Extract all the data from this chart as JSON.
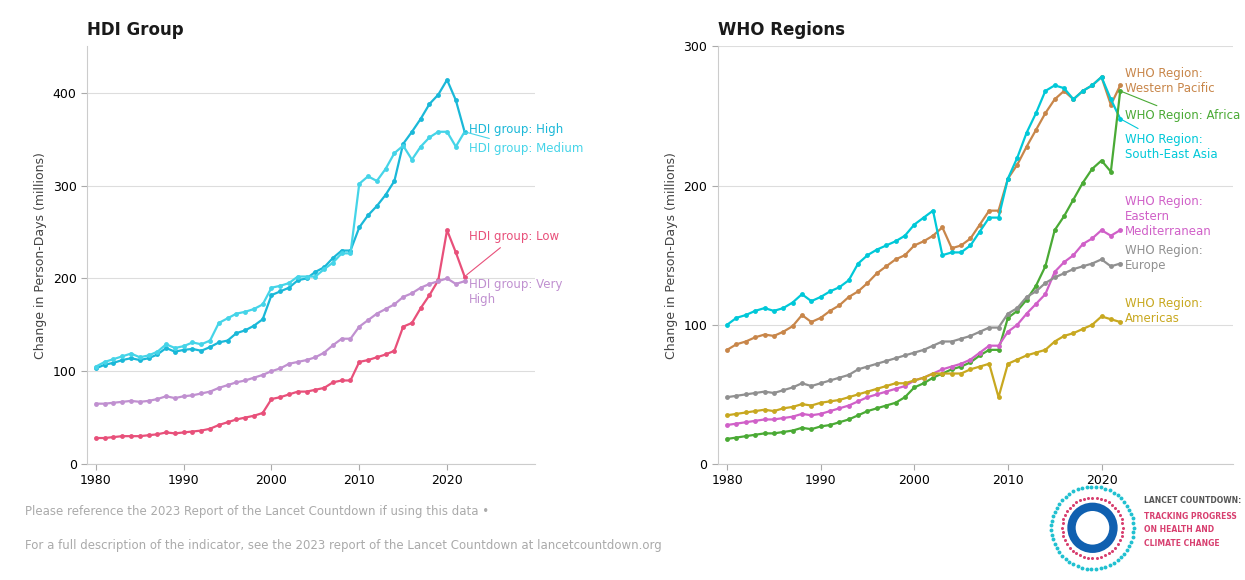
{
  "years": [
    1980,
    1981,
    1982,
    1983,
    1984,
    1985,
    1986,
    1987,
    1988,
    1989,
    1990,
    1991,
    1992,
    1993,
    1994,
    1995,
    1996,
    1997,
    1998,
    1999,
    2000,
    2001,
    2002,
    2003,
    2004,
    2005,
    2006,
    2007,
    2008,
    2009,
    2010,
    2011,
    2012,
    2013,
    2014,
    2015,
    2016,
    2017,
    2018,
    2019,
    2020,
    2021,
    2022
  ],
  "hdi_high": [
    103,
    107,
    109,
    112,
    114,
    112,
    114,
    118,
    125,
    121,
    123,
    124,
    122,
    126,
    131,
    133,
    141,
    144,
    149,
    156,
    182,
    186,
    190,
    198,
    200,
    207,
    212,
    222,
    230,
    230,
    255,
    268,
    278,
    290,
    305,
    345,
    358,
    372,
    388,
    398,
    414,
    392,
    358
  ],
  "hdi_medium": [
    105,
    110,
    113,
    116,
    119,
    115,
    117,
    121,
    129,
    125,
    127,
    131,
    129,
    133,
    152,
    157,
    162,
    164,
    167,
    172,
    190,
    192,
    195,
    202,
    202,
    202,
    210,
    217,
    227,
    227,
    302,
    310,
    305,
    318,
    335,
    343,
    328,
    342,
    352,
    358,
    358,
    342,
    358
  ],
  "hdi_low": [
    28,
    28,
    29,
    30,
    30,
    30,
    31,
    32,
    34,
    33,
    34,
    35,
    36,
    38,
    42,
    45,
    48,
    50,
    52,
    55,
    70,
    72,
    75,
    78,
    78,
    80,
    82,
    88,
    90,
    90,
    110,
    112,
    115,
    118,
    122,
    148,
    152,
    168,
    182,
    198,
    252,
    228,
    202
  ],
  "hdi_very_high": [
    65,
    65,
    66,
    67,
    68,
    67,
    68,
    70,
    73,
    71,
    73,
    74,
    76,
    78,
    82,
    85,
    88,
    90,
    93,
    96,
    100,
    103,
    108,
    110,
    112,
    115,
    120,
    128,
    135,
    135,
    148,
    155,
    162,
    167,
    172,
    180,
    184,
    190,
    194,
    197,
    200,
    194,
    197
  ],
  "hdi_colors": {
    "high": "#1ab8d8",
    "medium": "#45d4e8",
    "low": "#e8507a",
    "very_high": "#c090d0"
  },
  "hdi_labels": {
    "high": "HDI group: High",
    "medium": "HDI group: Medium",
    "low": "HDI group: Low",
    "very_high": "HDI group: Very\nHigh"
  },
  "who_western_pacific": [
    82,
    86,
    88,
    91,
    93,
    92,
    95,
    99,
    107,
    102,
    105,
    110,
    114,
    120,
    124,
    130,
    137,
    142,
    147,
    150,
    157,
    160,
    164,
    170,
    155,
    157,
    162,
    172,
    182,
    182,
    205,
    215,
    228,
    240,
    252,
    262,
    268,
    262,
    268,
    272,
    278,
    258,
    272
  ],
  "who_africa": [
    18,
    19,
    20,
    21,
    22,
    22,
    23,
    24,
    26,
    25,
    27,
    28,
    30,
    32,
    35,
    38,
    40,
    42,
    44,
    48,
    55,
    58,
    62,
    65,
    68,
    70,
    73,
    78,
    82,
    82,
    105,
    110,
    118,
    128,
    142,
    168,
    178,
    190,
    202,
    212,
    218,
    210,
    268
  ],
  "who_south_east_asia": [
    100,
    105,
    107,
    110,
    112,
    110,
    112,
    116,
    122,
    117,
    120,
    124,
    127,
    132,
    144,
    150,
    154,
    157,
    160,
    164,
    172,
    177,
    182,
    150,
    152,
    152,
    157,
    167,
    177,
    177,
    205,
    220,
    238,
    252,
    268,
    272,
    270,
    262,
    268,
    272,
    278,
    262,
    248
  ],
  "who_eastern_med": [
    28,
    29,
    30,
    31,
    32,
    32,
    33,
    34,
    36,
    35,
    36,
    38,
    40,
    42,
    45,
    48,
    50,
    52,
    54,
    56,
    60,
    62,
    65,
    68,
    70,
    72,
    75,
    80,
    85,
    85,
    95,
    100,
    108,
    115,
    122,
    138,
    145,
    150,
    158,
    162,
    168,
    164,
    168
  ],
  "who_europe": [
    48,
    49,
    50,
    51,
    52,
    51,
    53,
    55,
    58,
    56,
    58,
    60,
    62,
    64,
    68,
    70,
    72,
    74,
    76,
    78,
    80,
    82,
    85,
    88,
    88,
    90,
    92,
    95,
    98,
    98,
    108,
    112,
    120,
    124,
    130,
    134,
    137,
    140,
    142,
    144,
    147,
    142,
    144
  ],
  "who_americas": [
    35,
    36,
    37,
    38,
    39,
    38,
    40,
    41,
    43,
    42,
    44,
    45,
    46,
    48,
    50,
    52,
    54,
    56,
    58,
    58,
    60,
    62,
    65,
    65,
    65,
    65,
    68,
    70,
    72,
    48,
    72,
    75,
    78,
    80,
    82,
    88,
    92,
    94,
    97,
    100,
    106,
    104,
    102
  ],
  "who_colors": {
    "western_pacific": "#c8864a",
    "africa": "#4aaa35",
    "south_east_asia": "#00c8d8",
    "eastern_med": "#d060c8",
    "europe": "#909090",
    "americas": "#c8a820"
  },
  "who_labels": {
    "western_pacific": "WHO Region:\nWestern Pacific",
    "africa": "WHO Region: Africa",
    "south_east_asia": "WHO Region:\nSouth-East Asia",
    "eastern_med": "WHO Region:\nEastern\nMediterranean",
    "europe": "WHO Region:\nEurope",
    "americas": "WHO Region:\nAmericas"
  },
  "background_color": "#ffffff",
  "title_left": "HDI Group",
  "title_right": "WHO Regions",
  "ylabel": "Change in Person-Days (millions)",
  "ylim_left": [
    0,
    450
  ],
  "ylim_right": [
    0,
    300
  ],
  "yticks_left": [
    0,
    100,
    200,
    300,
    400
  ],
  "yticks_right": [
    0,
    100,
    200,
    300
  ],
  "xticks": [
    1980,
    1990,
    2000,
    2010,
    2020
  ],
  "xlim": [
    1979,
    2024
  ],
  "footer_line1": "Please reference the 2023 Report of the Lancet Countdown if using this data •",
  "footer_line2": "For a full description of the indicator, see the 2023 report of the Lancet Countdown at lancetcountdown.org"
}
